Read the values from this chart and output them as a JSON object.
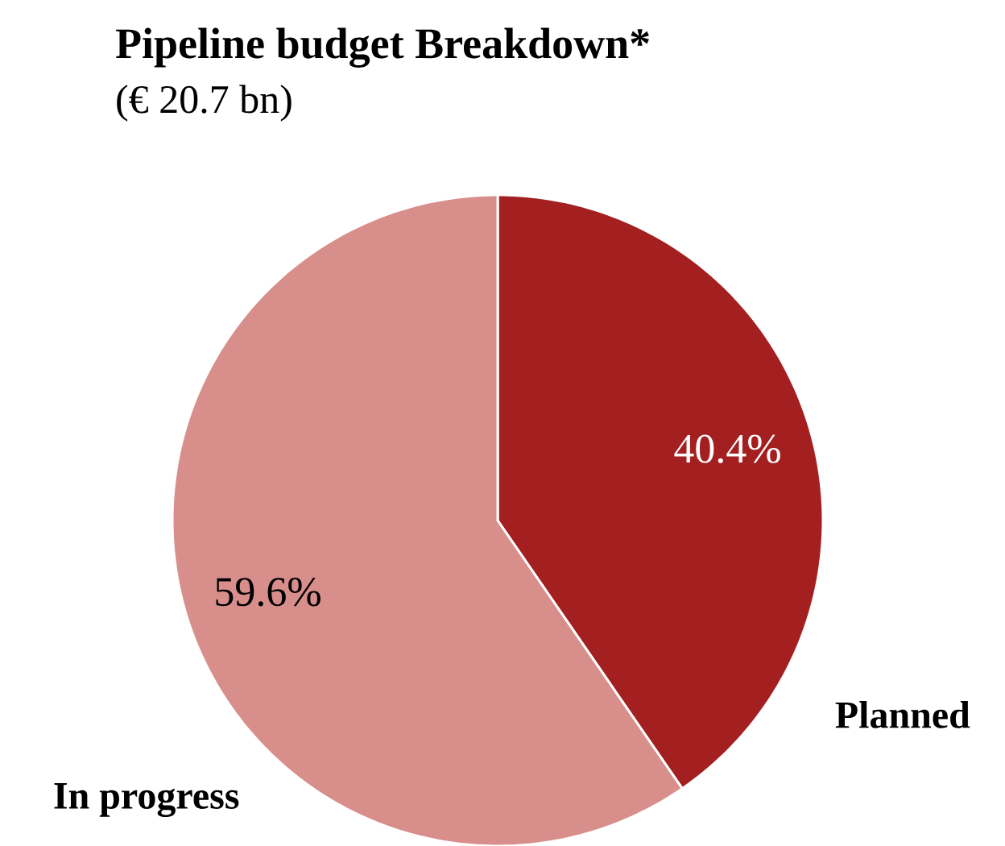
{
  "chart_data": {
    "type": "pie",
    "title": "Pipeline budget Breakdown*",
    "subtitle": "(€ 20.7 bn)",
    "categories": [
      "Planned",
      "In progress"
    ],
    "values": [
      40.4,
      59.6
    ],
    "colors": [
      "#a31f20",
      "#d88e8b"
    ],
    "value_labels": [
      "40.4%",
      "59.6%"
    ]
  }
}
